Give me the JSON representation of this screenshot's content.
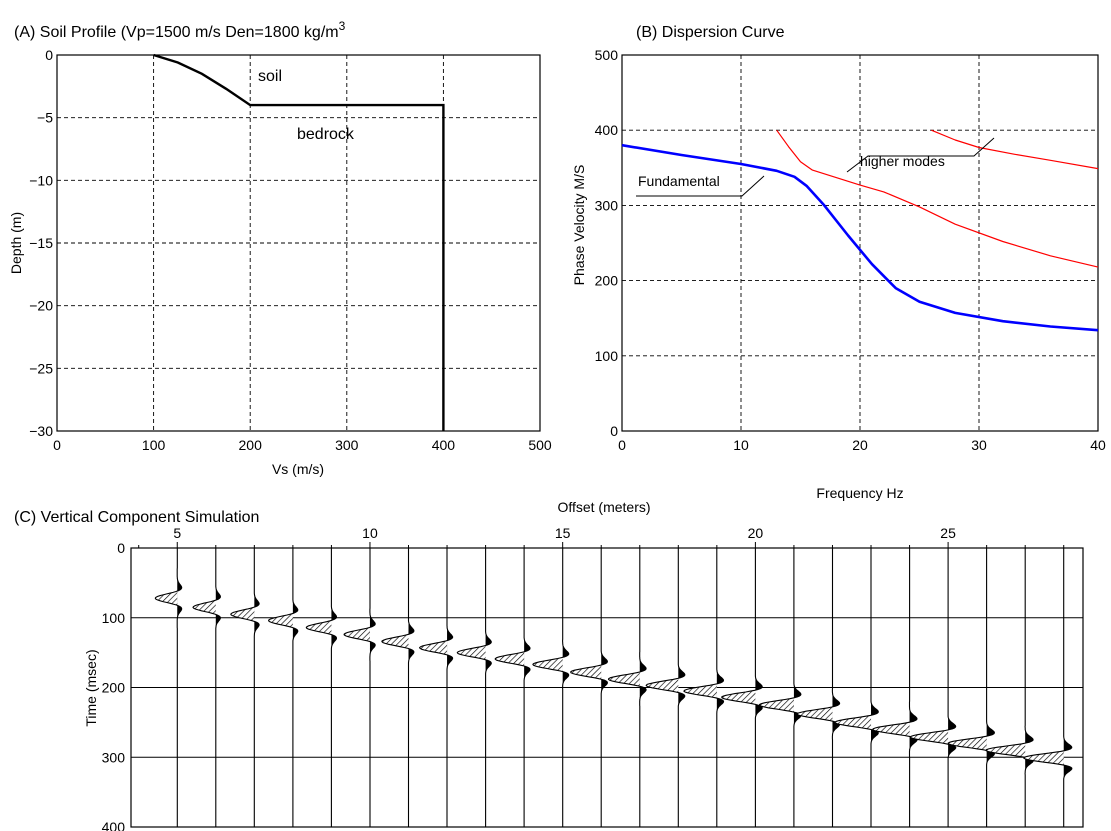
{
  "chart_data": [
    {
      "type": "line",
      "title": "(A) Soil Profile (Vp=1500 m/s  Den=1800 kg/m",
      "title_superscript": "3",
      "xlabel": "Vs (m/s)",
      "ylabel": "Depth (m)",
      "xlim": [
        0,
        500
      ],
      "ylim": [
        -30,
        0
      ],
      "xticks": [
        "0",
        "100",
        "200",
        "300",
        "400",
        "500"
      ],
      "yticks": [
        "0",
        "−5",
        "−10",
        "−15",
        "−20",
        "−25",
        "−30"
      ],
      "grid": true,
      "series": [
        {
          "color": "#000000",
          "points": [
            [
              100,
              0
            ],
            [
              125,
              -0.6
            ],
            [
              150,
              -1.5
            ],
            [
              175,
              -2.7
            ],
            [
              200,
              -4
            ],
            [
              300,
              -4
            ],
            [
              400,
              -4
            ],
            [
              400,
              -30
            ]
          ]
        }
      ],
      "annotations": [
        "soil",
        "bedrock"
      ]
    },
    {
      "type": "line",
      "title": "(B)  Dispersion Curve",
      "xlabel": "Frequency  Hz",
      "ylabel": "Phase Velocity M/S",
      "xlim": [
        0,
        40
      ],
      "ylim": [
        0,
        500
      ],
      "xticks": [
        "0",
        "10",
        "20",
        "30",
        "40"
      ],
      "yticks": [
        "0",
        "100",
        "200",
        "300",
        "400",
        "500"
      ],
      "grid": true,
      "series": [
        {
          "color": "#0000ff",
          "points": [
            [
              0,
              380
            ],
            [
              5,
              367
            ],
            [
              10,
              355
            ],
            [
              13,
              346
            ],
            [
              14.5,
              338
            ],
            [
              15.5,
              326
            ],
            [
              17,
              300
            ],
            [
              19,
              260
            ],
            [
              21,
              222
            ],
            [
              23,
              190
            ],
            [
              25,
              172
            ],
            [
              28,
              157
            ],
            [
              32,
              146
            ],
            [
              36,
              139
            ],
            [
              40,
              134
            ]
          ]
        },
        {
          "color": "#ff0000",
          "points": [
            [
              13,
              400
            ],
            [
              14,
              378
            ],
            [
              15,
              358
            ],
            [
              16,
              347
            ],
            [
              18,
              337
            ],
            [
              20,
              327
            ],
            [
              22,
              318
            ],
            [
              25,
              298
            ],
            [
              28,
              275
            ],
            [
              32,
              252
            ],
            [
              36,
              233
            ],
            [
              40,
              218
            ]
          ]
        },
        {
          "color": "#ff0000",
          "points": [
            [
              26,
              400
            ],
            [
              28,
              387
            ],
            [
              30,
              377
            ],
            [
              33,
              368
            ],
            [
              36,
              360
            ],
            [
              40,
              349
            ]
          ]
        }
      ],
      "annotations": [
        "Fundamental",
        "higher modes"
      ]
    },
    {
      "type": "line",
      "title": "(C) Vertical Component Simulation",
      "xlabel": "Offset (meters)",
      "ylabel": "Time (msec)",
      "xlim": [
        3.8,
        28.5
      ],
      "ylim": [
        400,
        0
      ],
      "xticks": [
        "5",
        "10",
        "15",
        "20",
        "25"
      ],
      "yticks": [
        "0",
        "100",
        "200",
        "300",
        "400"
      ],
      "grid": true,
      "traces": {
        "offsets": [
          5,
          6,
          7,
          8,
          9,
          10,
          11,
          12,
          13,
          14,
          15,
          16,
          17,
          18,
          19,
          20,
          21,
          22,
          23,
          24,
          25,
          26,
          27,
          28
        ],
        "arrival_times_ms": [
          72,
          85,
          95,
          104,
          114,
          124,
          134,
          143,
          150,
          159,
          167,
          178,
          188,
          197,
          205,
          214,
          225,
          238,
          250,
          260,
          271,
          280,
          290,
          301
        ]
      }
    }
  ]
}
